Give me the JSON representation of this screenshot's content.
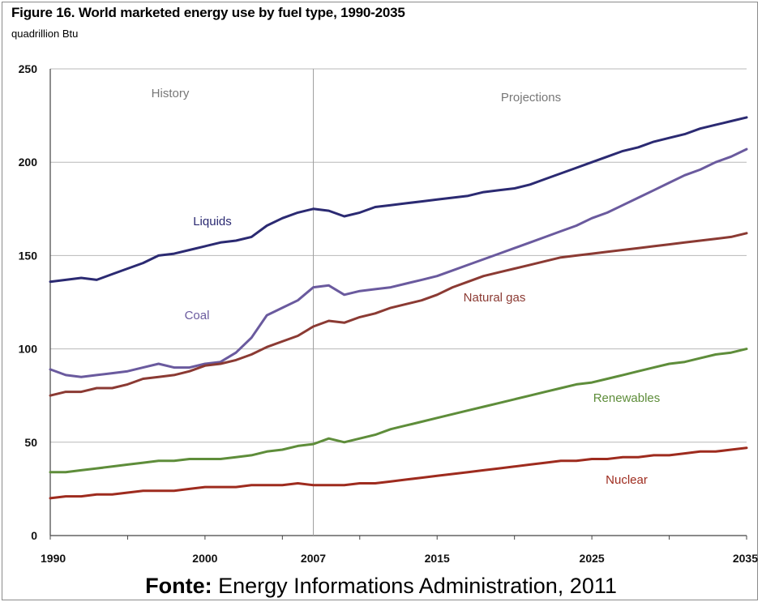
{
  "chart_data": {
    "type": "line",
    "title": "Figure 16. World marketed energy use by fuel type, 1990-2035",
    "ylabel": "quadrillion Btu",
    "xlabel": "",
    "xlim": [
      1990,
      2035
    ],
    "ylim": [
      0,
      250
    ],
    "x_ticks": [
      1990,
      2000,
      2007,
      2015,
      2025,
      2035
    ],
    "y_ticks": [
      0,
      50,
      100,
      150,
      200,
      250
    ],
    "divider_year": 2007,
    "region_labels": [
      "History",
      "Projections"
    ],
    "grid": "horizontal",
    "x": [
      1990,
      1991,
      1992,
      1993,
      1994,
      1995,
      1996,
      1997,
      1998,
      1999,
      2000,
      2001,
      2002,
      2003,
      2004,
      2005,
      2006,
      2007,
      2008,
      2009,
      2010,
      2011,
      2012,
      2013,
      2014,
      2015,
      2016,
      2017,
      2018,
      2019,
      2020,
      2021,
      2022,
      2023,
      2024,
      2025,
      2026,
      2027,
      2028,
      2029,
      2030,
      2031,
      2032,
      2033,
      2034,
      2035
    ],
    "series": [
      {
        "name": "Liquids",
        "color": "#2b2a72",
        "values": [
          136,
          137,
          138,
          137,
          140,
          143,
          146,
          150,
          151,
          153,
          155,
          157,
          158,
          160,
          166,
          170,
          173,
          175,
          174,
          171,
          173,
          176,
          177,
          178,
          179,
          180,
          181,
          182,
          184,
          185,
          186,
          188,
          191,
          194,
          197,
          200,
          203,
          206,
          208,
          211,
          213,
          215,
          218,
          220,
          222,
          224
        ]
      },
      {
        "name": "Coal",
        "color": "#6a5a9e",
        "values": [
          89,
          86,
          85,
          86,
          87,
          88,
          90,
          92,
          90,
          90,
          92,
          93,
          98,
          106,
          118,
          122,
          126,
          133,
          134,
          129,
          131,
          132,
          133,
          135,
          137,
          139,
          142,
          145,
          148,
          151,
          154,
          157,
          160,
          163,
          166,
          170,
          173,
          177,
          181,
          185,
          189,
          193,
          196,
          200,
          203,
          207
        ]
      },
      {
        "name": "Natural gas",
        "color": "#8b3a33",
        "values": [
          75,
          77,
          77,
          79,
          79,
          81,
          84,
          85,
          86,
          88,
          91,
          92,
          94,
          97,
          101,
          104,
          107,
          112,
          115,
          114,
          117,
          119,
          122,
          124,
          126,
          129,
          133,
          136,
          139,
          141,
          143,
          145,
          147,
          149,
          150,
          151,
          152,
          153,
          154,
          155,
          156,
          157,
          158,
          159,
          160,
          162
        ]
      },
      {
        "name": "Renewables",
        "color": "#5e8d3a",
        "values": [
          34,
          34,
          35,
          36,
          37,
          38,
          39,
          40,
          40,
          41,
          41,
          41,
          42,
          43,
          45,
          46,
          48,
          49,
          52,
          50,
          52,
          54,
          57,
          59,
          61,
          63,
          65,
          67,
          69,
          71,
          73,
          75,
          77,
          79,
          81,
          82,
          84,
          86,
          88,
          90,
          92,
          93,
          95,
          97,
          98,
          100
        ]
      },
      {
        "name": "Nuclear",
        "color": "#9e2b1e",
        "values": [
          20,
          21,
          21,
          22,
          22,
          23,
          24,
          24,
          24,
          25,
          26,
          26,
          26,
          27,
          27,
          27,
          28,
          27,
          27,
          27,
          28,
          28,
          29,
          30,
          31,
          32,
          33,
          34,
          35,
          36,
          37,
          38,
          39,
          40,
          40,
          41,
          41,
          42,
          42,
          43,
          43,
          44,
          45,
          45,
          46,
          47
        ]
      }
    ],
    "annotations": [
      "Liquids",
      "Coal",
      "Natural gas",
      "Renewables",
      "Nuclear"
    ]
  },
  "source": {
    "prefix": "Fonte:",
    "text": " Energy Informations Administration, 2011"
  }
}
